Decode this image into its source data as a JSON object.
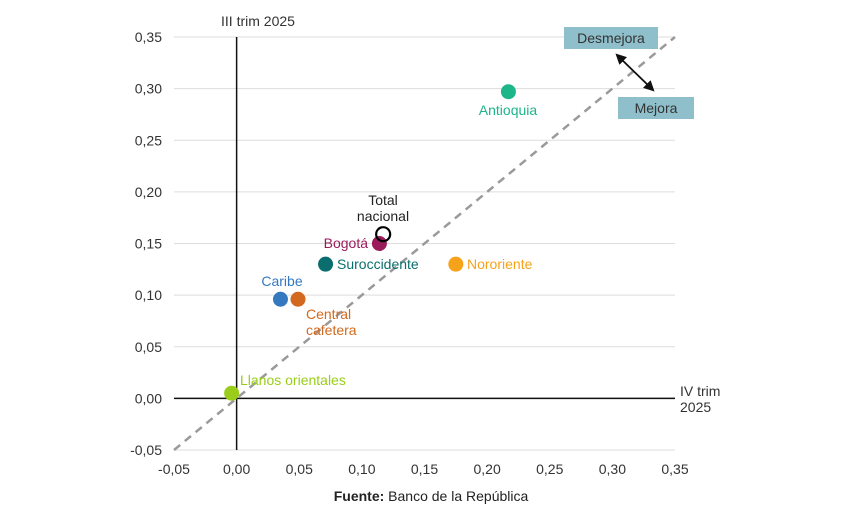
{
  "chart_data": {
    "type": "scatter",
    "title": "",
    "xlabel": "IV trim 2025",
    "ylabel": "III trim 2025",
    "xlim": [
      -0.05,
      0.35
    ],
    "ylim": [
      -0.05,
      0.35
    ],
    "xticks": [
      "-0,05",
      "0,00",
      "0,05",
      "0,10",
      "0,15",
      "0,20",
      "0,25",
      "0,30",
      "0,35"
    ],
    "yticks": [
      "0,35",
      "0,30",
      "0,25",
      "0,20",
      "0,15",
      "0,10",
      "0,05",
      "0,00",
      "-0,05"
    ],
    "grid": "horizontal",
    "reference_line": "45-degree dashed line (x = y)",
    "points": [
      {
        "name": "Antioquia",
        "x": 0.217,
        "y": 0.297,
        "color": "#1db58a"
      },
      {
        "name": "Total nacional",
        "x": 0.117,
        "y": 0.159,
        "color": "#000000",
        "hollow": true
      },
      {
        "name": "Bogotá",
        "x": 0.114,
        "y": 0.15,
        "color": "#9b1b5a"
      },
      {
        "name": "Suroccidente",
        "x": 0.071,
        "y": 0.13,
        "color": "#0b6e6e"
      },
      {
        "name": "Nororiente",
        "x": 0.175,
        "y": 0.13,
        "color": "#f7a21b"
      },
      {
        "name": "Caribe",
        "x": 0.035,
        "y": 0.096,
        "color": "#3478c0"
      },
      {
        "name": "Central cafetera",
        "x": 0.049,
        "y": 0.096,
        "color": "#d2691e"
      },
      {
        "name": "Llanos orientales",
        "x": -0.004,
        "y": 0.005,
        "color": "#9acd1a"
      }
    ],
    "annotations": [
      "Desmejora",
      "Mejora"
    ]
  },
  "labels": {
    "y_axis_title": "III trim 2025",
    "x_axis_title_line1": "IV trim",
    "x_axis_title_line2": "2025",
    "desmejora": "Desmejora",
    "mejora": "Mejora",
    "total_line1": "Total",
    "total_line2": "nacional",
    "central_line1": "Central",
    "central_line2": "cafetera"
  },
  "source": {
    "prefix": "Fuente:",
    "text": " Banco de la República"
  }
}
